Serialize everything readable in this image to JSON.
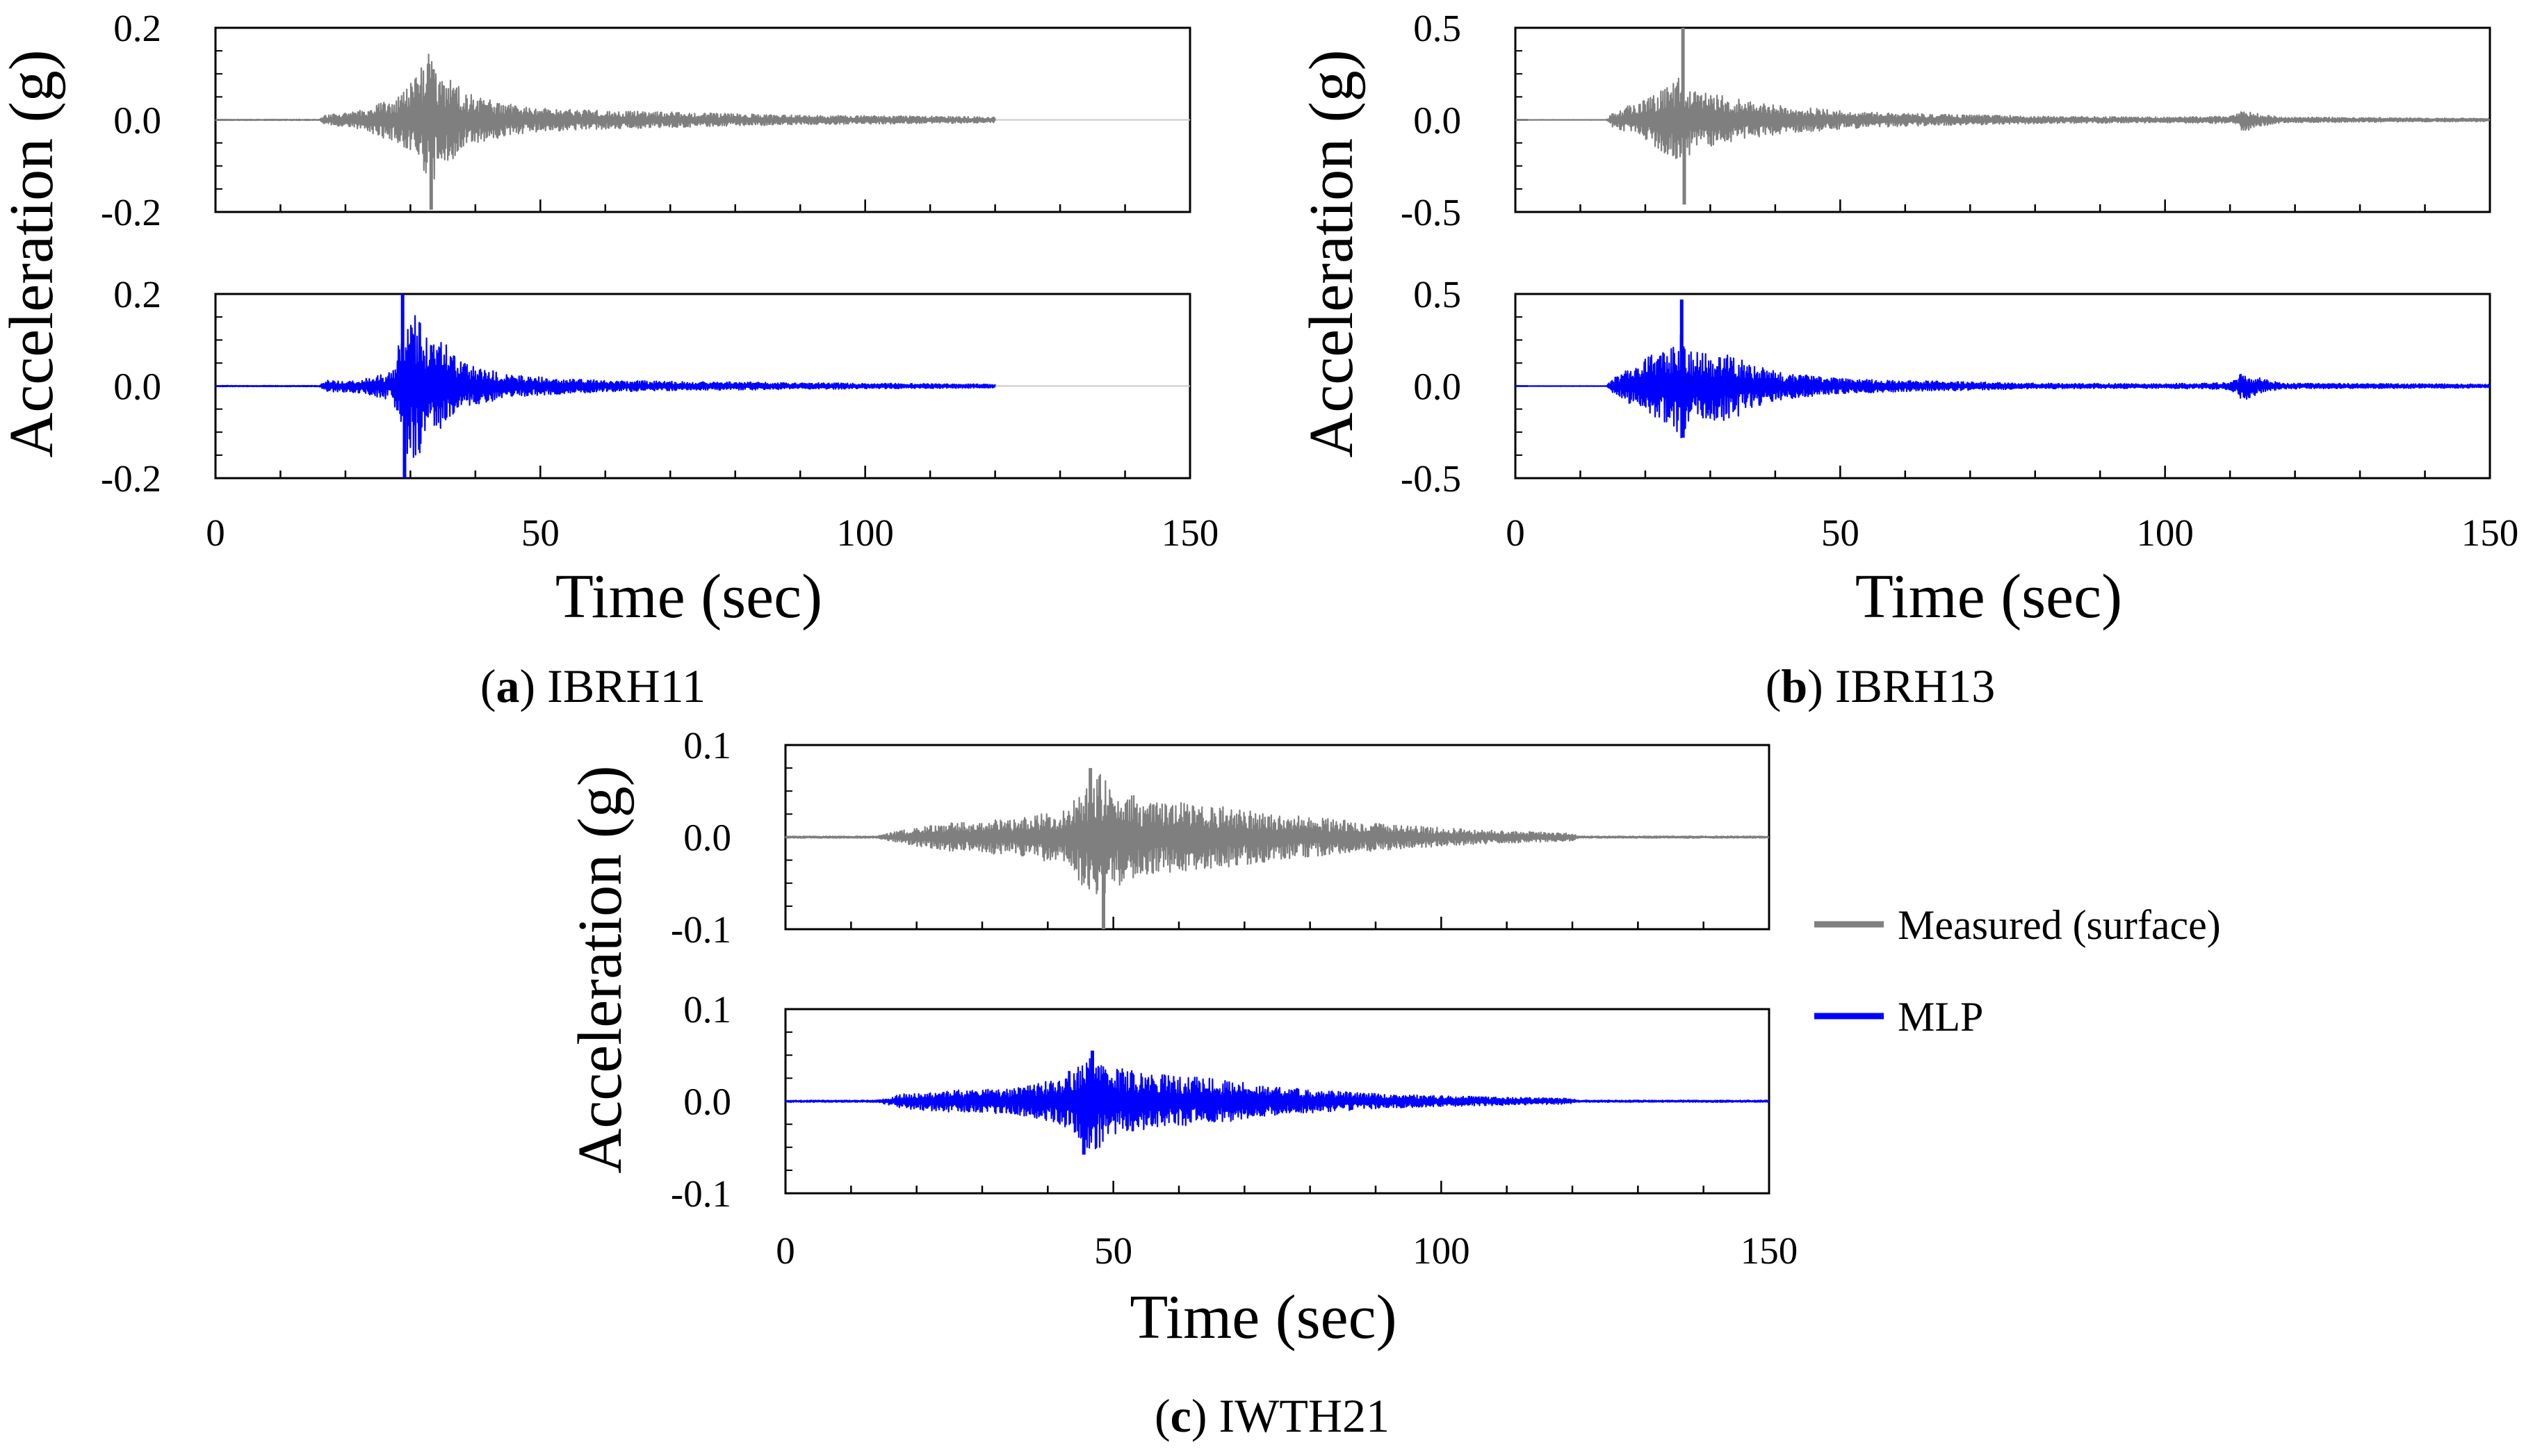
{
  "figure": {
    "legend": [
      {
        "label": "Measured (surface)",
        "color": "#7f7f7f"
      },
      {
        "label": "MLP",
        "color": "#0000ff"
      }
    ],
    "captions": [
      {
        "letter": "a",
        "station": " IBRH11",
        "open": "(",
        "close": ")"
      },
      {
        "letter": "b",
        "station": " IBRH13",
        "open": "(",
        "close": ")"
      },
      {
        "letter": "c",
        "station": " IWTH21",
        "open": "(",
        "close": ")"
      }
    ]
  },
  "chart_data": [
    {
      "type": "line",
      "panel": "a",
      "title": "IBRH11",
      "xlabel": "Time (sec)",
      "ylabel": "Acceleration (g)",
      "xlim": [
        0,
        150
      ],
      "xticks": [
        "0",
        "50",
        "100",
        "150"
      ],
      "series": [
        {
          "name": "Measured (surface)",
          "color": "#7f7f7f",
          "ylim": [
            -0.2,
            0.2
          ],
          "yticks": [
            "0.2",
            "0.0",
            "-0.2"
          ],
          "duration": 120,
          "envelope": [
            [
              0,
              0.001
            ],
            [
              16,
              0.001
            ],
            [
              17,
              0.012
            ],
            [
              22,
              0.02
            ],
            [
              26,
              0.04
            ],
            [
              29,
              0.06
            ],
            [
              31,
              0.1
            ],
            [
              33,
              0.15
            ],
            [
              35,
              0.1
            ],
            [
              37,
              0.08
            ],
            [
              40,
              0.05
            ],
            [
              45,
              0.035
            ],
            [
              50,
              0.025
            ],
            [
              60,
              0.02
            ],
            [
              75,
              0.015
            ],
            [
              90,
              0.01
            ],
            [
              110,
              0.008
            ],
            [
              120,
              0.006
            ]
          ],
          "spikes": [
            [
              33.2,
              -0.195
            ],
            [
              33.5,
              0.11
            ]
          ]
        },
        {
          "name": "MLP",
          "color": "#0000ff",
          "ylim": [
            -0.2,
            0.2
          ],
          "yticks": [
            "0.2",
            "0.0",
            "-0.2"
          ],
          "duration": 120,
          "envelope": [
            [
              0,
              0.001
            ],
            [
              16,
              0.001
            ],
            [
              17,
              0.012
            ],
            [
              22,
              0.015
            ],
            [
              27,
              0.03
            ],
            [
              29,
              0.14
            ],
            [
              30,
              0.16
            ],
            [
              32,
              0.14
            ],
            [
              35,
              0.1
            ],
            [
              38,
              0.05
            ],
            [
              45,
              0.025
            ],
            [
              55,
              0.015
            ],
            [
              70,
              0.01
            ],
            [
              90,
              0.007
            ],
            [
              110,
              0.005
            ],
            [
              120,
              0.004
            ]
          ],
          "spikes": [
            [
              28.8,
              0.205
            ],
            [
              29.1,
              -0.2
            ]
          ]
        }
      ]
    },
    {
      "type": "line",
      "panel": "b",
      "title": "IBRH13",
      "xlabel": "Time (sec)",
      "ylabel": "Acceleration (g)",
      "xlim": [
        0,
        150
      ],
      "xticks": [
        "0",
        "50",
        "100",
        "150"
      ],
      "series": [
        {
          "name": "Measured (surface)",
          "color": "#7f7f7f",
          "ylim": [
            -0.5,
            0.5
          ],
          "yticks": [
            "0.5",
            "0.0",
            "-0.5"
          ],
          "duration": 150,
          "envelope": [
            [
              0,
              0.001
            ],
            [
              14,
              0.001
            ],
            [
              15,
              0.04
            ],
            [
              20,
              0.12
            ],
            [
              24,
              0.2
            ],
            [
              26,
              0.25
            ],
            [
              28,
              0.16
            ],
            [
              32,
              0.13
            ],
            [
              36,
              0.1
            ],
            [
              40,
              0.08
            ],
            [
              50,
              0.05
            ],
            [
              60,
              0.035
            ],
            [
              80,
              0.02
            ],
            [
              100,
              0.015
            ],
            [
              110,
              0.02
            ],
            [
              112,
              0.07
            ],
            [
              114,
              0.04
            ],
            [
              118,
              0.015
            ],
            [
              150,
              0.008
            ]
          ],
          "spikes": [
            [
              25.8,
              0.5
            ],
            [
              26.0,
              -0.46
            ]
          ]
        },
        {
          "name": "MLP",
          "color": "#0000ff",
          "ylim": [
            -0.5,
            0.5
          ],
          "yticks": [
            "0.5",
            "0.0",
            "-0.5"
          ],
          "duration": 150,
          "envelope": [
            [
              0,
              0.001
            ],
            [
              14,
              0.001
            ],
            [
              15,
              0.04
            ],
            [
              20,
              0.15
            ],
            [
              24,
              0.22
            ],
            [
              25.5,
              0.3
            ],
            [
              27,
              0.2
            ],
            [
              30,
              0.18
            ],
            [
              33,
              0.2
            ],
            [
              36,
              0.12
            ],
            [
              40,
              0.08
            ],
            [
              50,
              0.04
            ],
            [
              60,
              0.03
            ],
            [
              80,
              0.015
            ],
            [
              100,
              0.012
            ],
            [
              110,
              0.02
            ],
            [
              112,
              0.08
            ],
            [
              114,
              0.05
            ],
            [
              118,
              0.015
            ],
            [
              150,
              0.01
            ]
          ],
          "spikes": [
            [
              25.6,
              0.47
            ],
            [
              25.8,
              -0.28
            ]
          ]
        }
      ]
    },
    {
      "type": "line",
      "panel": "c",
      "title": "IWTH21",
      "xlabel": "Time (sec)",
      "ylabel": "Acceleration (g)",
      "xlim": [
        0,
        150
      ],
      "xticks": [
        "0",
        "50",
        "100",
        "150"
      ],
      "series": [
        {
          "name": "Measured (surface)",
          "color": "#7f7f7f",
          "ylim": [
            -0.1,
            0.1
          ],
          "yticks": [
            "0.1",
            "0.0",
            "-0.1"
          ],
          "duration": 150,
          "envelope": [
            [
              0,
              0.001
            ],
            [
              14,
              0.001
            ],
            [
              18,
              0.008
            ],
            [
              25,
              0.015
            ],
            [
              35,
              0.02
            ],
            [
              43,
              0.03
            ],
            [
              46,
              0.06
            ],
            [
              48,
              0.07
            ],
            [
              50,
              0.055
            ],
            [
              55,
              0.04
            ],
            [
              65,
              0.035
            ],
            [
              75,
              0.025
            ],
            [
              90,
              0.015
            ],
            [
              105,
              0.008
            ],
            [
              120,
              0.004
            ],
            [
              121,
              0.001
            ],
            [
              150,
              0.001
            ]
          ],
          "spikes": [
            [
              46.5,
              0.075
            ],
            [
              48.5,
              -0.1
            ]
          ]
        },
        {
          "name": "MLP",
          "color": "#0000ff",
          "ylim": [
            -0.1,
            0.1
          ],
          "yticks": [
            "0.1",
            "0.0",
            "-0.1"
          ],
          "duration": 150,
          "envelope": [
            [
              0,
              0.001
            ],
            [
              14,
              0.001
            ],
            [
              18,
              0.008
            ],
            [
              25,
              0.012
            ],
            [
              35,
              0.014
            ],
            [
              42,
              0.025
            ],
            [
              45,
              0.045
            ],
            [
              47,
              0.055
            ],
            [
              50,
              0.04
            ],
            [
              55,
              0.03
            ],
            [
              65,
              0.025
            ],
            [
              75,
              0.015
            ],
            [
              90,
              0.008
            ],
            [
              105,
              0.005
            ],
            [
              120,
              0.003
            ],
            [
              121,
              0.001
            ],
            [
              150,
              0.001
            ]
          ],
          "spikes": [
            [
              46.8,
              0.055
            ],
            [
              45.5,
              -0.058
            ]
          ]
        }
      ]
    }
  ]
}
